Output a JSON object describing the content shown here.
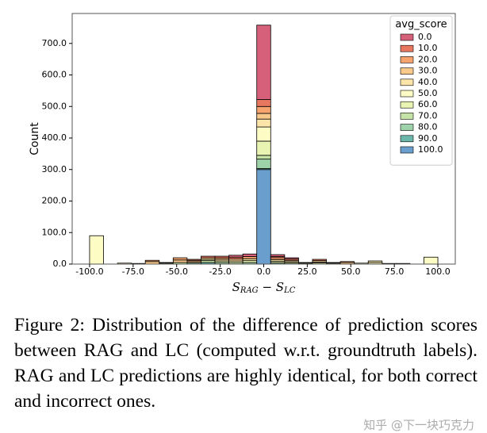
{
  "chart_data": {
    "type": "stacked_histogram",
    "xlabel_parts": [
      "S",
      "RAG",
      " − ",
      "S",
      "LC"
    ],
    "ylabel": "Count",
    "legend_title": "avg_score",
    "legend": "upper right",
    "bins": [
      -100,
      -92,
      -84,
      -76,
      -68,
      -60,
      -52,
      -44,
      -36,
      -28,
      -20,
      -12,
      -4,
      4,
      12,
      20,
      28,
      36,
      44,
      52,
      60,
      68,
      76,
      84,
      92,
      100
    ],
    "xlim": [
      -110,
      110
    ],
    "ylim": [
      0,
      795
    ],
    "xticks": [
      {
        "value": -100,
        "label": "-100.0"
      },
      {
        "value": -75,
        "label": "-75.0"
      },
      {
        "value": -50,
        "label": "-50.0"
      },
      {
        "value": -25,
        "label": "-25.0"
      },
      {
        "value": 0,
        "label": "0.0"
      },
      {
        "value": 25,
        "label": "25.0"
      },
      {
        "value": 50,
        "label": "50.0"
      },
      {
        "value": 75,
        "label": "75.0"
      },
      {
        "value": 100,
        "label": "100.0"
      }
    ],
    "yticks": [
      {
        "value": 0,
        "label": "0.0"
      },
      {
        "value": 100,
        "label": "100.0"
      },
      {
        "value": 200,
        "label": "200.0"
      },
      {
        "value": 300,
        "label": "300.0"
      },
      {
        "value": 400,
        "label": "400.0"
      },
      {
        "value": 500,
        "label": "500.0"
      },
      {
        "value": 600,
        "label": "600.0"
      },
      {
        "value": 700,
        "label": "700.0"
      }
    ],
    "series": [
      {
        "name": "0.0",
        "color": "#d6607a",
        "values": [
          0,
          0,
          0,
          0,
          0,
          0,
          0,
          0,
          0,
          0,
          6,
          8,
          236,
          6,
          4,
          0,
          0,
          0,
          0,
          0,
          0,
          0,
          0,
          0,
          0
        ]
      },
      {
        "name": "10.0",
        "color": "#e8775f",
        "values": [
          0,
          0,
          0,
          0,
          0,
          0,
          0,
          3,
          5,
          5,
          6,
          0,
          22,
          4,
          4,
          0,
          4,
          0,
          0,
          0,
          0,
          0,
          0,
          0,
          0
        ]
      },
      {
        "name": "20.0",
        "color": "#f5a46d",
        "values": [
          0,
          0,
          0,
          0,
          4,
          0,
          7,
          4,
          0,
          5,
          0,
          7,
          22,
          6,
          0,
          2,
          0,
          2,
          3,
          0,
          0,
          2,
          0,
          0,
          0
        ]
      },
      {
        "name": "30.0",
        "color": "#f8c98b",
        "values": [
          0,
          0,
          0,
          2,
          8,
          0,
          8,
          0,
          5,
          0,
          6,
          0,
          18,
          0,
          4,
          0,
          4,
          0,
          5,
          0,
          0,
          0,
          0,
          0,
          0
        ]
      },
      {
        "name": "40.0",
        "color": "#fbe5a8",
        "values": [
          0,
          0,
          3,
          0,
          0,
          2,
          0,
          4,
          0,
          5,
          0,
          6,
          25,
          5,
          0,
          3,
          0,
          3,
          0,
          0,
          5,
          0,
          2,
          0,
          0
        ]
      },
      {
        "name": "50.0",
        "color": "#fdfcc5",
        "values": [
          90,
          0,
          0,
          0,
          0,
          0,
          0,
          0,
          0,
          0,
          5,
          0,
          45,
          0,
          4,
          0,
          3,
          0,
          0,
          0,
          5,
          0,
          0,
          0,
          22
        ]
      },
      {
        "name": "60.0",
        "color": "#e9f3b2",
        "values": [
          0,
          0,
          0,
          0,
          0,
          3,
          0,
          0,
          4,
          5,
          0,
          6,
          45,
          5,
          0,
          0,
          4,
          0,
          0,
          3,
          0,
          0,
          0,
          0,
          0
        ]
      },
      {
        "name": "70.0",
        "color": "#c5e3a6",
        "values": [
          0,
          0,
          0,
          0,
          0,
          0,
          5,
          0,
          6,
          0,
          5,
          0,
          12,
          0,
          4,
          0,
          0,
          0,
          0,
          0,
          0,
          0,
          0,
          0,
          0
        ]
      },
      {
        "name": "80.0",
        "color": "#9ed2a8",
        "values": [
          0,
          0,
          0,
          0,
          0,
          0,
          0,
          4,
          0,
          5,
          0,
          5,
          30,
          4,
          0,
          0,
          0,
          0,
          0,
          0,
          0,
          0,
          0,
          0,
          0
        ]
      },
      {
        "name": "90.0",
        "color": "#6cb7ab",
        "values": [
          0,
          0,
          0,
          0,
          0,
          0,
          0,
          0,
          5,
          0,
          0,
          0,
          3,
          0,
          0,
          0,
          0,
          0,
          0,
          0,
          0,
          0,
          0,
          0,
          0
        ]
      },
      {
        "name": "100.0",
        "color": "#6a9fcd",
        "values": [
          0,
          0,
          0,
          0,
          0,
          0,
          0,
          0,
          0,
          0,
          0,
          0,
          300,
          0,
          0,
          0,
          0,
          0,
          0,
          0,
          0,
          0,
          0,
          0,
          0
        ]
      }
    ]
  },
  "caption": "Figure 2: Distribution of the difference of prediction scores between RAG and LC (computed w.r.t. groundtruth labels). RAG and LC predictions are highly identical, for both correct and incorrect ones.",
  "watermark": "知乎 @下一块巧克力"
}
